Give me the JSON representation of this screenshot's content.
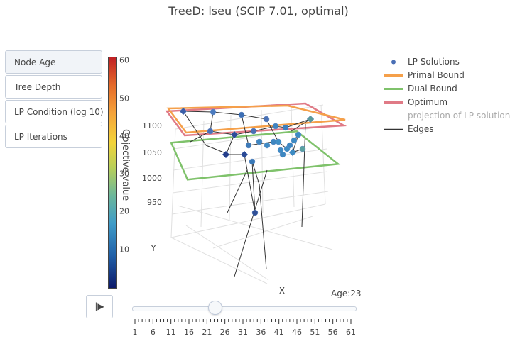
{
  "title": "TreeD: lseu (SCIP 7.01, optimal)",
  "menu": {
    "buttons": [
      "Node Age",
      "Tree Depth",
      "LP Condition (log 10)",
      "LP Iterations"
    ],
    "active_index": 0
  },
  "colorbar": {
    "title": "Objective value",
    "ticks": [
      "60",
      "50",
      "40",
      "30",
      "20",
      "10"
    ],
    "tick_values": [
      60,
      50,
      40,
      30,
      20,
      10
    ],
    "min": 0,
    "max": 61
  },
  "legend": {
    "items": [
      {
        "label": "LP Solutions",
        "color": "#4a6fb5",
        "kind": "marker",
        "faded": false
      },
      {
        "label": "Primal Bound",
        "color": "#f5a04a",
        "kind": "line",
        "faded": false
      },
      {
        "label": "Dual Bound",
        "color": "#7fc26b",
        "kind": "line",
        "faded": false
      },
      {
        "label": "Optimum",
        "color": "#e07a86",
        "kind": "line",
        "faded": false
      },
      {
        "label": "projection of LP solutions",
        "color": "#ffffff",
        "kind": "none",
        "faded": true
      },
      {
        "label": "Edges",
        "color": "#333333",
        "kind": "line",
        "faded": false
      }
    ]
  },
  "scene": {
    "axis_x_title": "X",
    "axis_y_title": "Y",
    "z_ticks": [
      "1100",
      "1050",
      "1000",
      "950"
    ]
  },
  "slider": {
    "label": "Age:23",
    "play_label": "|▶",
    "value": 23,
    "min": 1,
    "max": 61,
    "tick_labels": [
      "1",
      "6",
      "11",
      "16",
      "21",
      "26",
      "31",
      "36",
      "41",
      "46",
      "51",
      "56",
      "61"
    ]
  },
  "chart_data": {
    "type": "scatter",
    "title": "TreeD: lseu (SCIP 7.01, optimal)",
    "xlabel": "X",
    "ylabel": "Y",
    "zlabel": "Objective value",
    "zlim": [
      940,
      1120
    ],
    "primal_bound": 1120,
    "dual_bound": 1065,
    "optimum": 1120,
    "series": [
      {
        "name": "LP Solutions",
        "values": [
          1118,
          1110,
          1108,
          1096,
          1091,
          1085,
          1080,
          1078,
          1076,
          1072,
          1070,
          1068,
          1066,
          1064,
          1062,
          1060,
          1058,
          1055,
          1052,
          1050,
          1048,
          1046,
          1045,
          1043,
          1040,
          1038,
          948
        ]
      }
    ]
  }
}
